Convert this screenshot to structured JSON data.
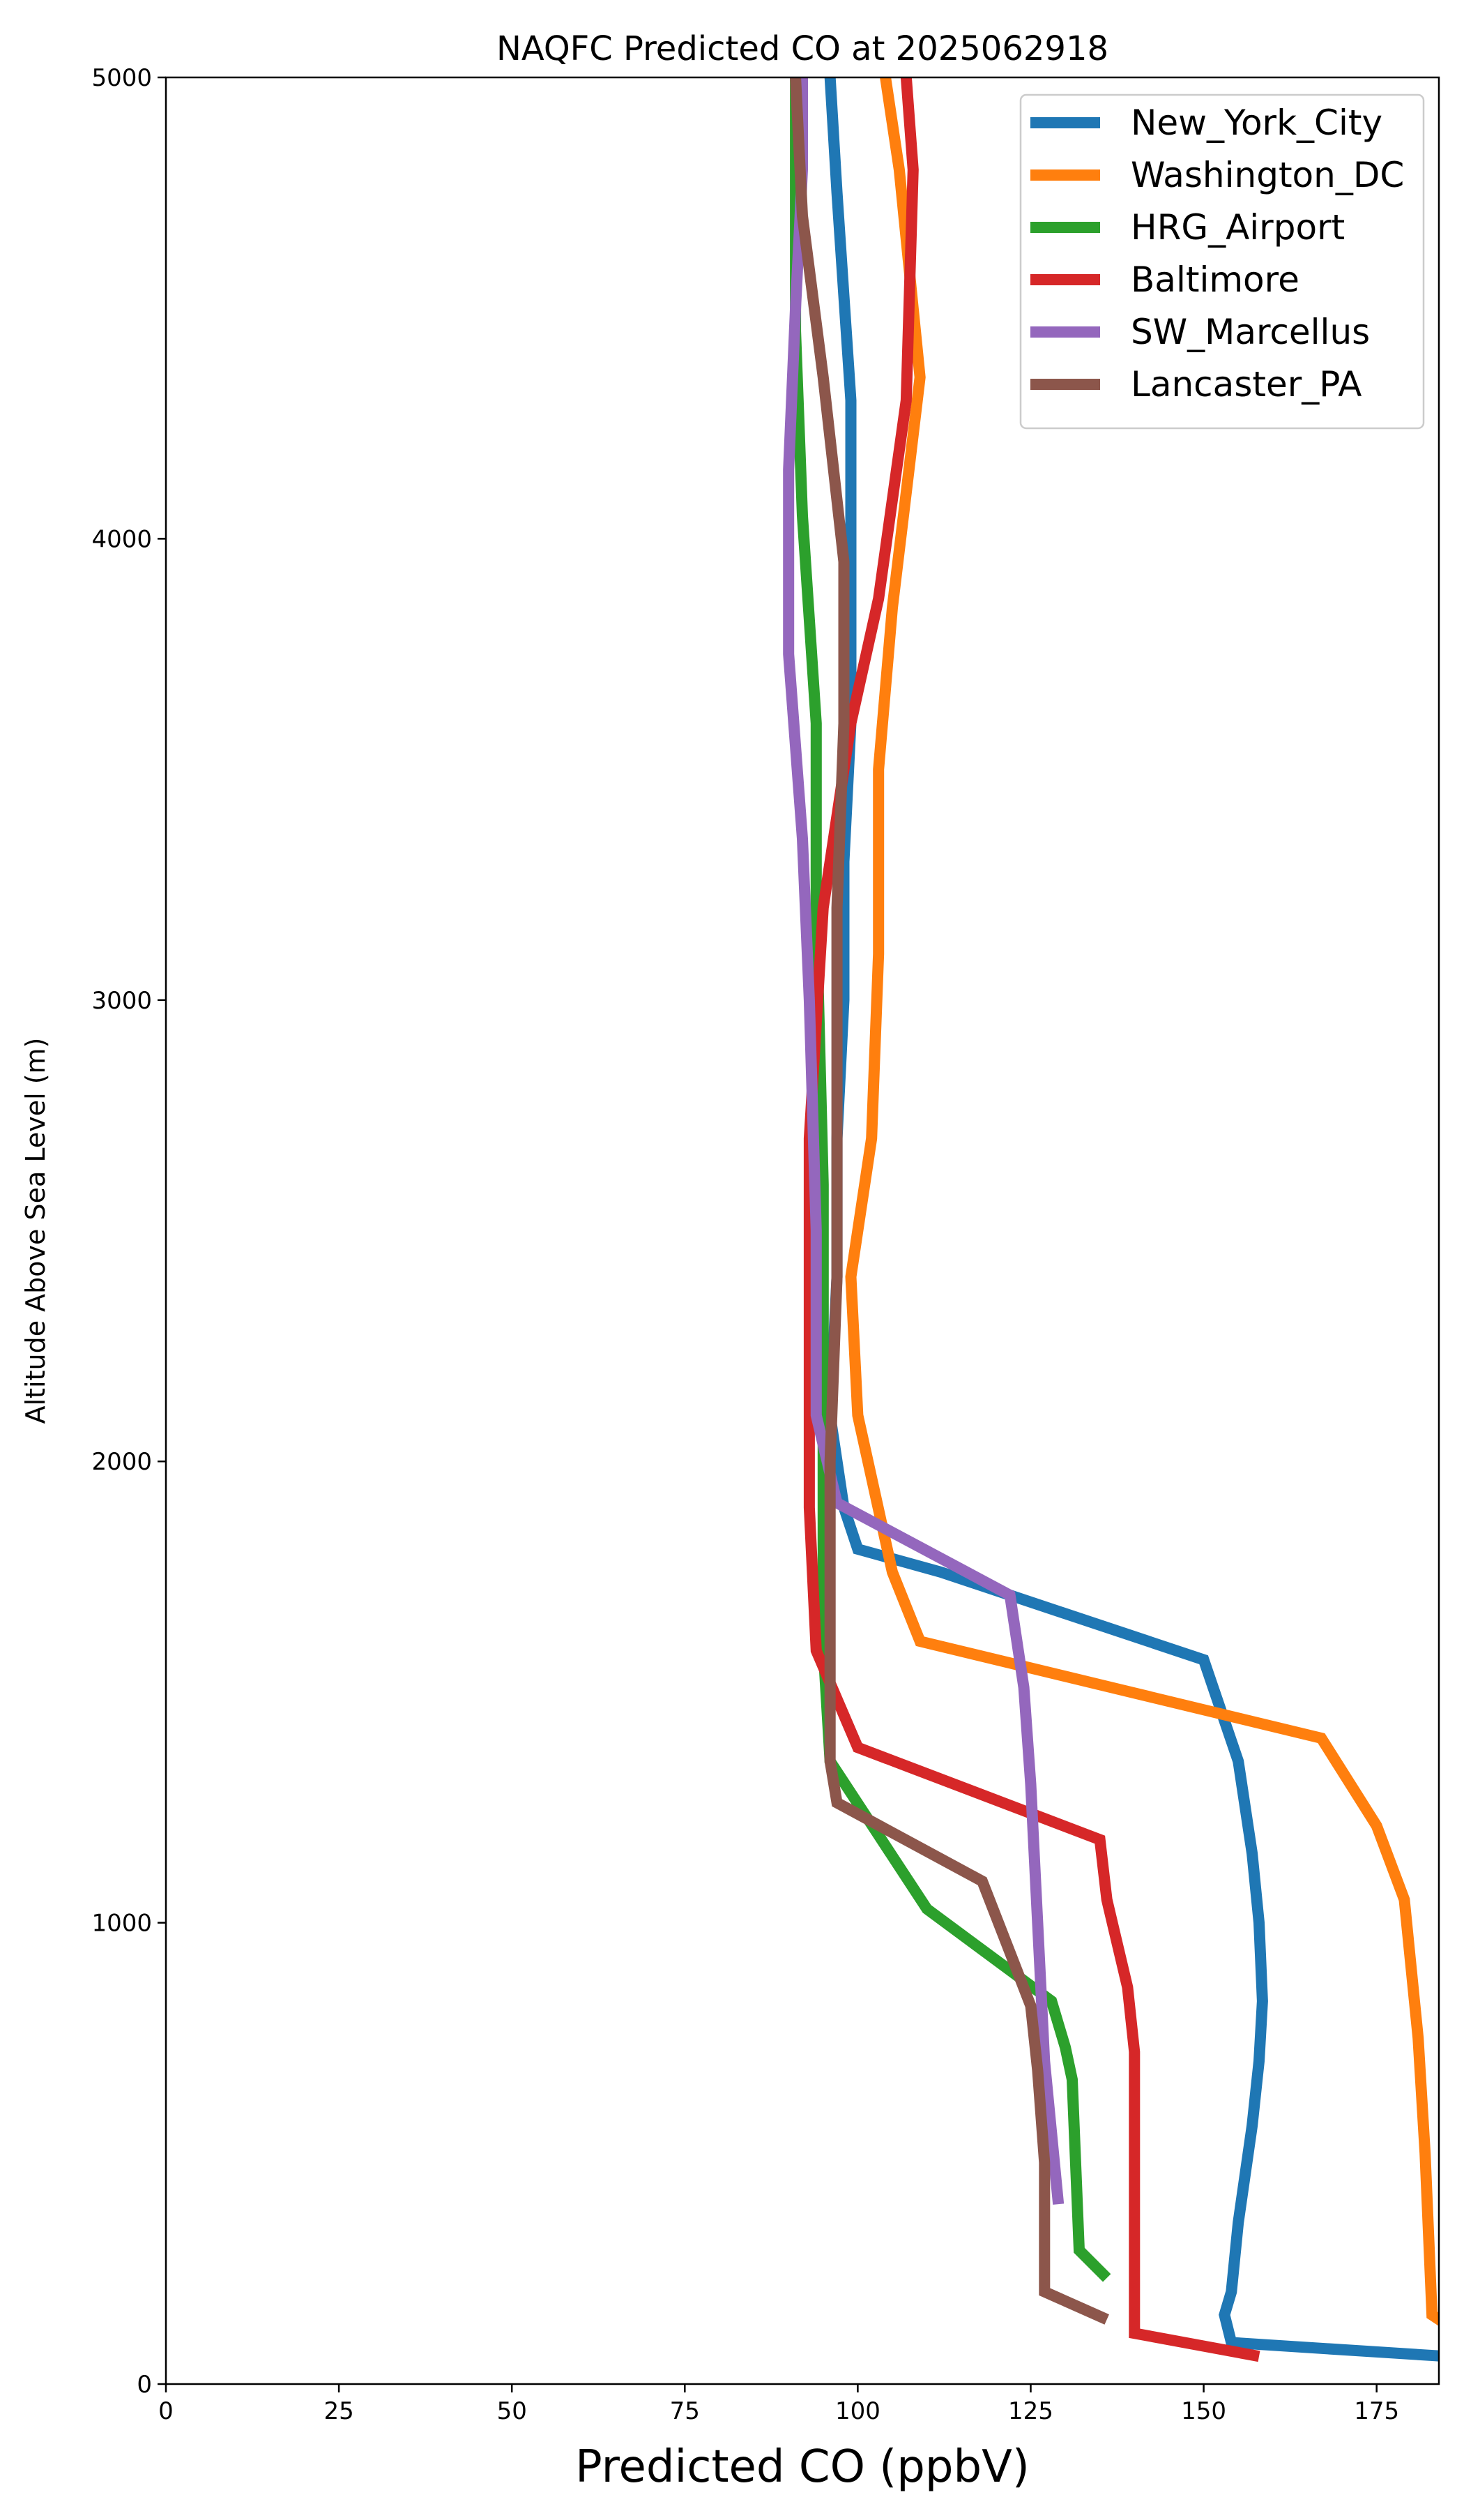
{
  "chart_data": {
    "type": "line",
    "title": "NAQFC Predicted CO at 2025062918",
    "xlabel": "Predicted CO (ppbV)",
    "ylabel": "Altitude Above Sea Level (m)",
    "xlim": [
      0,
      184
    ],
    "ylim": [
      0,
      5000
    ],
    "xticks": [
      "0",
      "25",
      "50",
      "75",
      "100",
      "125",
      "150",
      "175"
    ],
    "yticks": [
      "0",
      "1000",
      "2000",
      "3000",
      "4000",
      "5000"
    ],
    "grid": false,
    "legend_position": "top-right",
    "series": [
      {
        "name": "New_York_City",
        "color": "#1f77b4",
        "points": [
          [
            185,
            60
          ],
          [
            154,
            90
          ],
          [
            153,
            150
          ],
          [
            154,
            200
          ],
          [
            155,
            350
          ],
          [
            157,
            560
          ],
          [
            158,
            700
          ],
          [
            158.5,
            830
          ],
          [
            158,
            1000
          ],
          [
            157,
            1150
          ],
          [
            155,
            1350
          ],
          [
            150,
            1570
          ],
          [
            112,
            1760
          ],
          [
            100,
            1810
          ],
          [
            98,
            1900
          ],
          [
            96,
            2100
          ],
          [
            97,
            2400
          ],
          [
            97,
            2700
          ],
          [
            98,
            3000
          ],
          [
            98,
            3300
          ],
          [
            99,
            3600
          ],
          [
            99,
            3900
          ],
          [
            99,
            4300
          ],
          [
            97,
            4750
          ],
          [
            96,
            5000
          ]
        ]
      },
      {
        "name": "Washington_DC",
        "color": "#ff7f0e",
        "points": [
          [
            185,
            130
          ],
          [
            183,
            150
          ],
          [
            182,
            500
          ],
          [
            181,
            750
          ],
          [
            179,
            1050
          ],
          [
            175,
            1210
          ],
          [
            167,
            1400
          ],
          [
            109,
            1610
          ],
          [
            105,
            1760
          ],
          [
            100,
            2100
          ],
          [
            99,
            2400
          ],
          [
            102,
            2700
          ],
          [
            103,
            3100
          ],
          [
            103,
            3500
          ],
          [
            105,
            3850
          ],
          [
            107,
            4100
          ],
          [
            109,
            4350
          ],
          [
            106,
            4800
          ],
          [
            104,
            5000
          ]
        ]
      },
      {
        "name": "HRG_Airport",
        "color": "#2ca02c",
        "points": [
          [
            136,
            230
          ],
          [
            132,
            290
          ],
          [
            131,
            660
          ],
          [
            130,
            730
          ],
          [
            128,
            830
          ],
          [
            110,
            1030
          ],
          [
            96,
            1350
          ],
          [
            95,
            1600
          ],
          [
            95,
            2100
          ],
          [
            95,
            2600
          ],
          [
            94,
            3200
          ],
          [
            94,
            3600
          ],
          [
            92,
            4050
          ],
          [
            91,
            4450
          ],
          [
            91,
            5000
          ]
        ]
      },
      {
        "name": "Baltimore",
        "color": "#d62728",
        "points": [
          [
            158,
            60
          ],
          [
            140,
            110
          ],
          [
            140,
            300
          ],
          [
            140,
            500
          ],
          [
            140,
            720
          ],
          [
            139,
            860
          ],
          [
            136,
            1050
          ],
          [
            135,
            1180
          ],
          [
            100,
            1380
          ],
          [
            94,
            1590
          ],
          [
            93,
            1900
          ],
          [
            93,
            2300
          ],
          [
            93,
            2700
          ],
          [
            95,
            3200
          ],
          [
            99,
            3600
          ],
          [
            103,
            3870
          ],
          [
            107,
            4300
          ],
          [
            108,
            4800
          ],
          [
            107,
            5000
          ]
        ]
      },
      {
        "name": "SW_Marcellus",
        "color": "#9467bd",
        "points": [
          [
            129,
            390
          ],
          [
            127,
            700
          ],
          [
            126,
            1000
          ],
          [
            125,
            1300
          ],
          [
            124,
            1510
          ],
          [
            122,
            1710
          ],
          [
            97,
            1910
          ],
          [
            94,
            2100
          ],
          [
            94,
            2500
          ],
          [
            93,
            3000
          ],
          [
            92,
            3350
          ],
          [
            90,
            3750
          ],
          [
            90,
            4150
          ],
          [
            91,
            4500
          ],
          [
            92,
            4800
          ],
          [
            92,
            5000
          ]
        ]
      },
      {
        "name": "Lancaster_PA",
        "color": "#8c564b",
        "points": [
          [
            136,
            140
          ],
          [
            127,
            200
          ],
          [
            127,
            480
          ],
          [
            126,
            680
          ],
          [
            125,
            820
          ],
          [
            118,
            1090
          ],
          [
            97,
            1260
          ],
          [
            96,
            1350
          ],
          [
            96,
            1650
          ],
          [
            96,
            2000
          ],
          [
            97,
            2400
          ],
          [
            97,
            2800
          ],
          [
            97,
            3200
          ],
          [
            98,
            3600
          ],
          [
            98,
            3950
          ],
          [
            95,
            4350
          ],
          [
            92,
            4700
          ],
          [
            91,
            5000
          ]
        ]
      }
    ]
  }
}
